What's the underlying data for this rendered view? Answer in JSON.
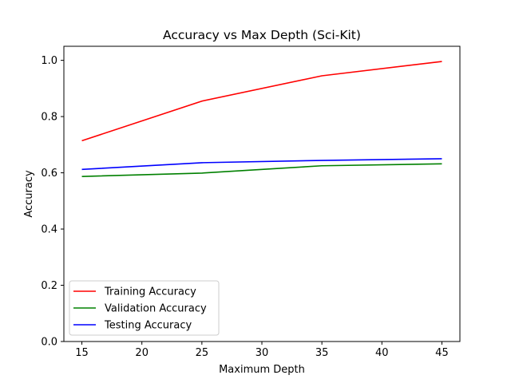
{
  "chart_data": {
    "type": "line",
    "title": "Accuracy vs Max Depth (Sci-Kit)",
    "xlabel": "Maximum Depth",
    "ylabel": "Accuracy",
    "x": [
      15,
      25,
      35,
      45
    ],
    "xlim": [
      13.5,
      46.5
    ],
    "ylim": [
      0.0,
      1.05
    ],
    "xticks": [
      15,
      20,
      25,
      30,
      35,
      40,
      45
    ],
    "yticks": [
      0.0,
      0.2,
      0.4,
      0.6,
      0.8,
      1.0
    ],
    "xtick_labels": [
      "15",
      "20",
      "25",
      "30",
      "35",
      "40",
      "45"
    ],
    "ytick_labels": [
      "0.0",
      "0.2",
      "0.4",
      "0.6",
      "0.8",
      "1.0"
    ],
    "grid": false,
    "legend_position": "lower-left",
    "series": [
      {
        "name": "Training Accuracy",
        "color": "#ff0000",
        "values": [
          0.714,
          0.855,
          0.945,
          0.996
        ]
      },
      {
        "name": "Validation Accuracy",
        "color": "#008000",
        "values": [
          0.587,
          0.599,
          0.625,
          0.632
        ]
      },
      {
        "name": "Testing Accuracy",
        "color": "#0000ff",
        "values": [
          0.612,
          0.636,
          0.644,
          0.65
        ]
      }
    ]
  }
}
